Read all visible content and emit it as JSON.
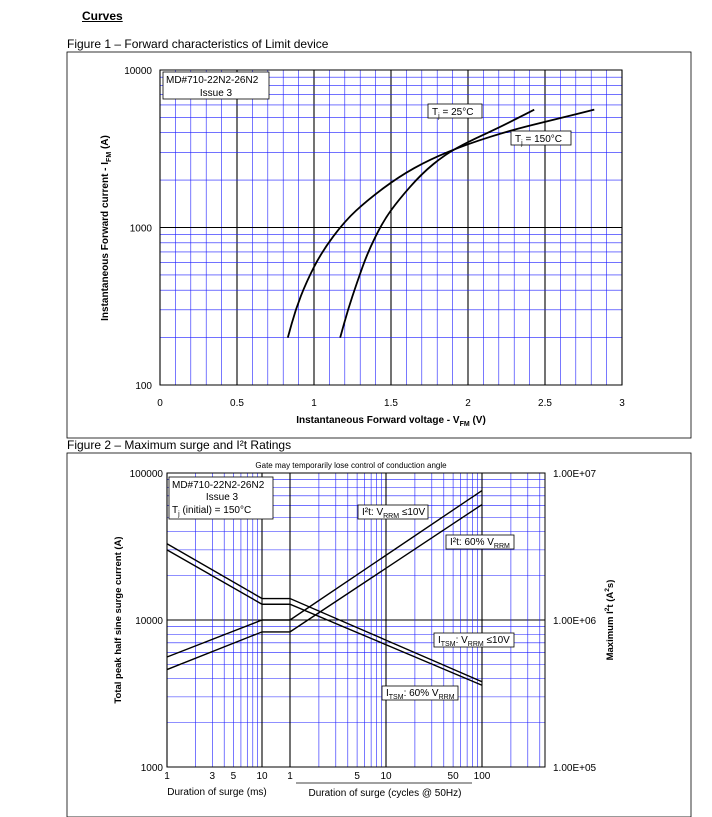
{
  "section_title": "Curves",
  "colors": {
    "grid": "#1f1fff",
    "major_grid": "#000000",
    "curve": "#000000"
  },
  "chart_data": [
    {
      "type": "line",
      "caption": "Figure 1 – Forward characteristics of Limit device",
      "part_number": "MD#710-22N2-26N2",
      "issue": "Issue 3",
      "xlabel": "Instantaneous Forward voltage - V",
      "xlabel_sub": "FM",
      "xlabel_unit": " (V)",
      "ylabel": "Instantaneous Forward current - I",
      "ylabel_sub": "FM",
      "ylabel_unit": " (A)",
      "x_scale": "linear",
      "y_scale": "log",
      "xlim": [
        0,
        3
      ],
      "ylim": [
        100,
        10000
      ],
      "x_ticks": [
        "0",
        "0.5",
        "1",
        "1.5",
        "2",
        "2.5",
        "3"
      ],
      "y_ticks": [
        "100",
        "1000",
        "10000"
      ],
      "grid": true,
      "series": [
        {
          "label": "T",
          "label_sub": "j",
          "label_rest": " = 25°C",
          "points": [
            [
              1.17,
              200
            ],
            [
              1.22,
              300
            ],
            [
              1.28,
              450
            ],
            [
              1.35,
              700
            ],
            [
              1.45,
              1100
            ],
            [
              1.55,
              1500
            ],
            [
              1.7,
              2200
            ],
            [
              1.85,
              2900
            ],
            [
              2.0,
              3500
            ],
            [
              2.2,
              4300
            ],
            [
              2.43,
              5600
            ]
          ]
        },
        {
          "label": "T",
          "label_sub": "j",
          "label_rest": " = 150°C",
          "points": [
            [
              0.83,
              200
            ],
            [
              0.88,
              300
            ],
            [
              0.95,
              450
            ],
            [
              1.05,
              700
            ],
            [
              1.2,
              1100
            ],
            [
              1.35,
              1500
            ],
            [
              1.55,
              2100
            ],
            [
              1.75,
              2700
            ],
            [
              2.0,
              3400
            ],
            [
              2.3,
              4200
            ],
            [
              2.6,
              4950
            ],
            [
              2.82,
              5600
            ]
          ]
        }
      ]
    },
    {
      "type": "line",
      "caption": "Figure 2 – Maximum surge and I²t Ratings",
      "note": "Gate may temporarily lose control of conduction angle",
      "part_number": "MD#710-22N2-26N2",
      "issue": "Issue 3",
      "condition": "T",
      "condition_sub": "j",
      "condition_rest": " (initial) = 150°C",
      "x_scale": "log",
      "xlabel_left": "Duration of surge (ms)",
      "xlabel_right": "Duration of surge (cycles @ 50Hz)",
      "x_ticks_ms": [
        "1",
        "3",
        "5",
        "10"
      ],
      "x_ticks_cycles": [
        "1",
        "5",
        "10",
        "50",
        "100"
      ],
      "ylabel_left": "Total peak half sine surge current (A)",
      "ylabel_right": "Maximum I",
      "ylabel_right_sup": "2",
      "ylabel_right_rest": "t (A",
      "ylabel_right_sup2": "2",
      "ylabel_right_end": "s)",
      "y_scale": "log",
      "ylim_left": [
        1000,
        100000
      ],
      "ylim_right": [
        100000,
        10000000
      ],
      "y_ticks_left": [
        "1000",
        "10000",
        "100000"
      ],
      "y_ticks_right": [
        "1.00E+05",
        "1.00E+06",
        "1.00E+07"
      ],
      "grid": true,
      "series": [
        {
          "label": "I²t: V",
          "label_sub": "RRM",
          "label_rest": " ≤10V",
          "axis": "right",
          "points_ms": [
            [
              1,
              560000
            ],
            [
              10,
              1000000
            ]
          ],
          "points_cycles": [
            [
              1,
              1000000
            ],
            [
              100,
              7600000
            ]
          ]
        },
        {
          "label": "I²t: 60% V",
          "label_sub": "RRM",
          "label_rest": "",
          "axis": "right",
          "points_ms": [
            [
              1,
              460000
            ],
            [
              10,
              830000
            ]
          ],
          "points_cycles": [
            [
              1,
              830000
            ],
            [
              100,
              6100000
            ]
          ]
        },
        {
          "label": "I",
          "label_sub": "TSM",
          "label_rest": ": V",
          "label_sub2": "RRM",
          "label_end": " ≤10V",
          "axis": "left",
          "points_ms": [
            [
              1,
              33000
            ],
            [
              10,
              14000
            ]
          ],
          "points_cycles": [
            [
              1,
              14000
            ],
            [
              100,
              3800
            ]
          ]
        },
        {
          "label": "I",
          "label_sub": "TSM",
          "label_rest": ": 60% V",
          "label_sub2": "RRM",
          "label_end": "",
          "axis": "left",
          "points_ms": [
            [
              1,
              30000
            ],
            [
              10,
              12800
            ]
          ],
          "points_cycles": [
            [
              1,
              12800
            ],
            [
              100,
              3600
            ]
          ]
        }
      ]
    }
  ]
}
